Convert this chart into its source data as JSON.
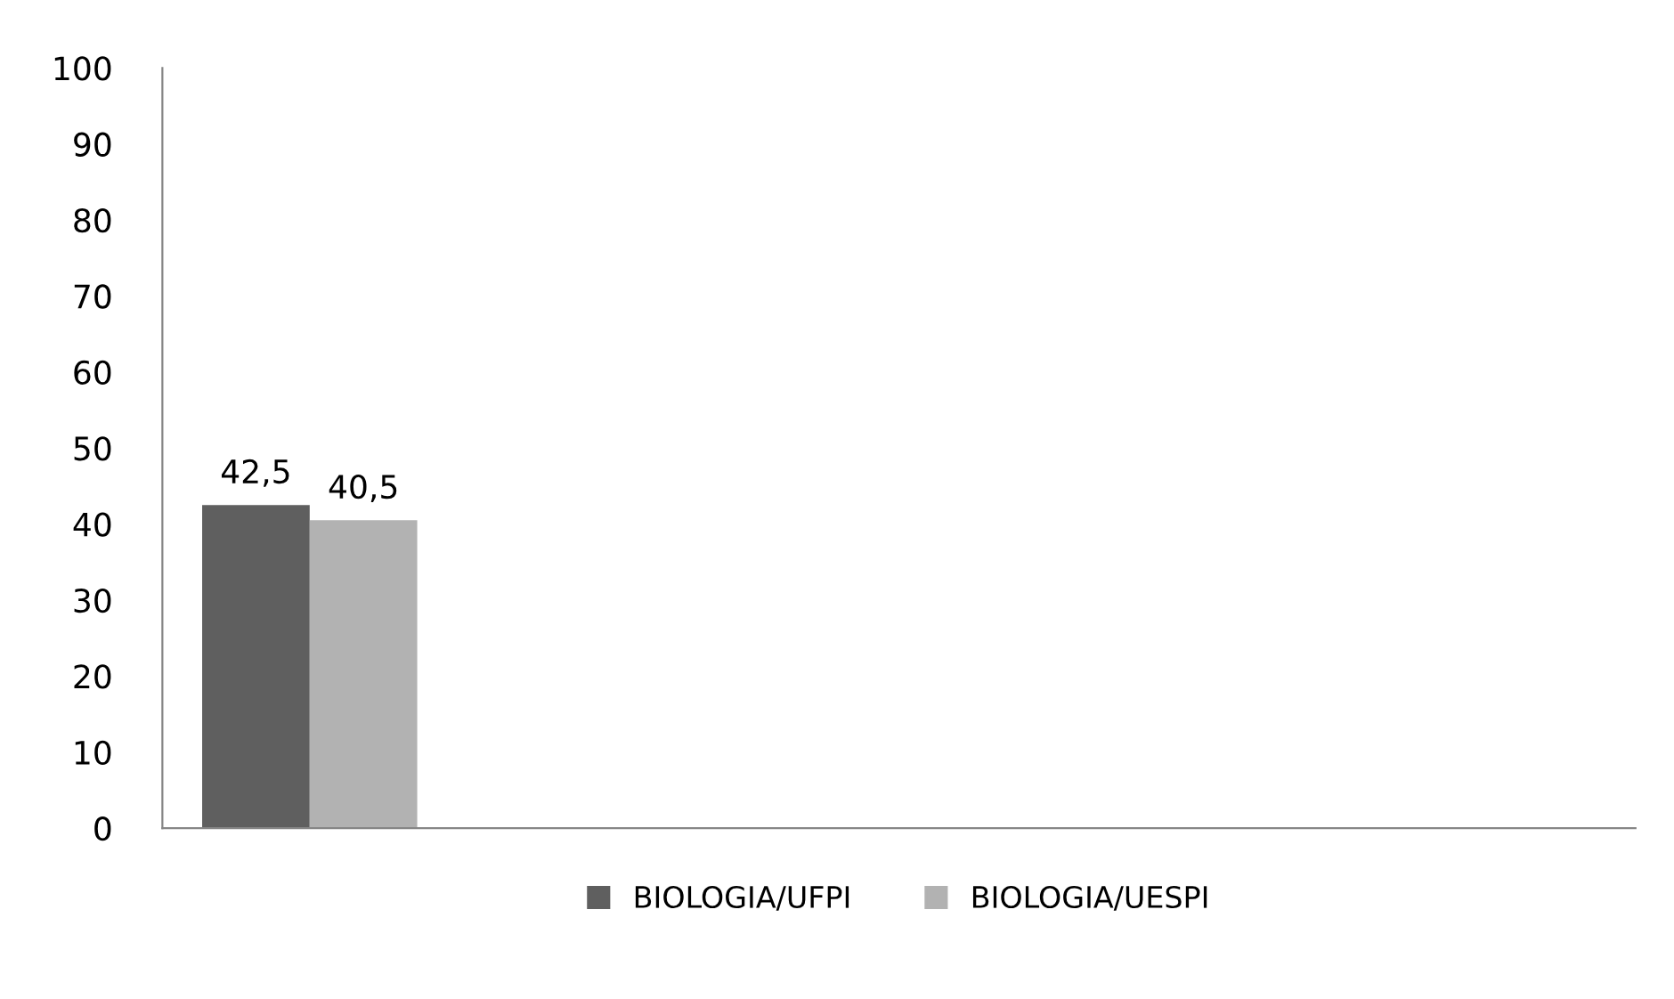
{
  "chart_data": {
    "type": "bar",
    "categories": [
      null,
      null,
      null,
      null,
      null
    ],
    "series": [
      {
        "name": "BIOLOGIA/UFPI",
        "color": "#5f5f5f",
        "values": [
          42.5,
          null,
          null,
          null,
          null
        ],
        "value_labels": [
          "42,5",
          null,
          null,
          null,
          null
        ]
      },
      {
        "name": "BIOLOGIA/UESPI",
        "color": "#b2b2b2",
        "values": [
          40.5,
          null,
          null,
          null,
          null
        ],
        "value_labels": [
          "40,5",
          null,
          null,
          null,
          null
        ]
      }
    ],
    "ylim": [
      0,
      100
    ],
    "yticks": [
      0,
      10,
      20,
      30,
      40,
      50,
      60,
      70,
      80,
      90,
      100
    ],
    "grid": false,
    "legend": "bottom"
  }
}
